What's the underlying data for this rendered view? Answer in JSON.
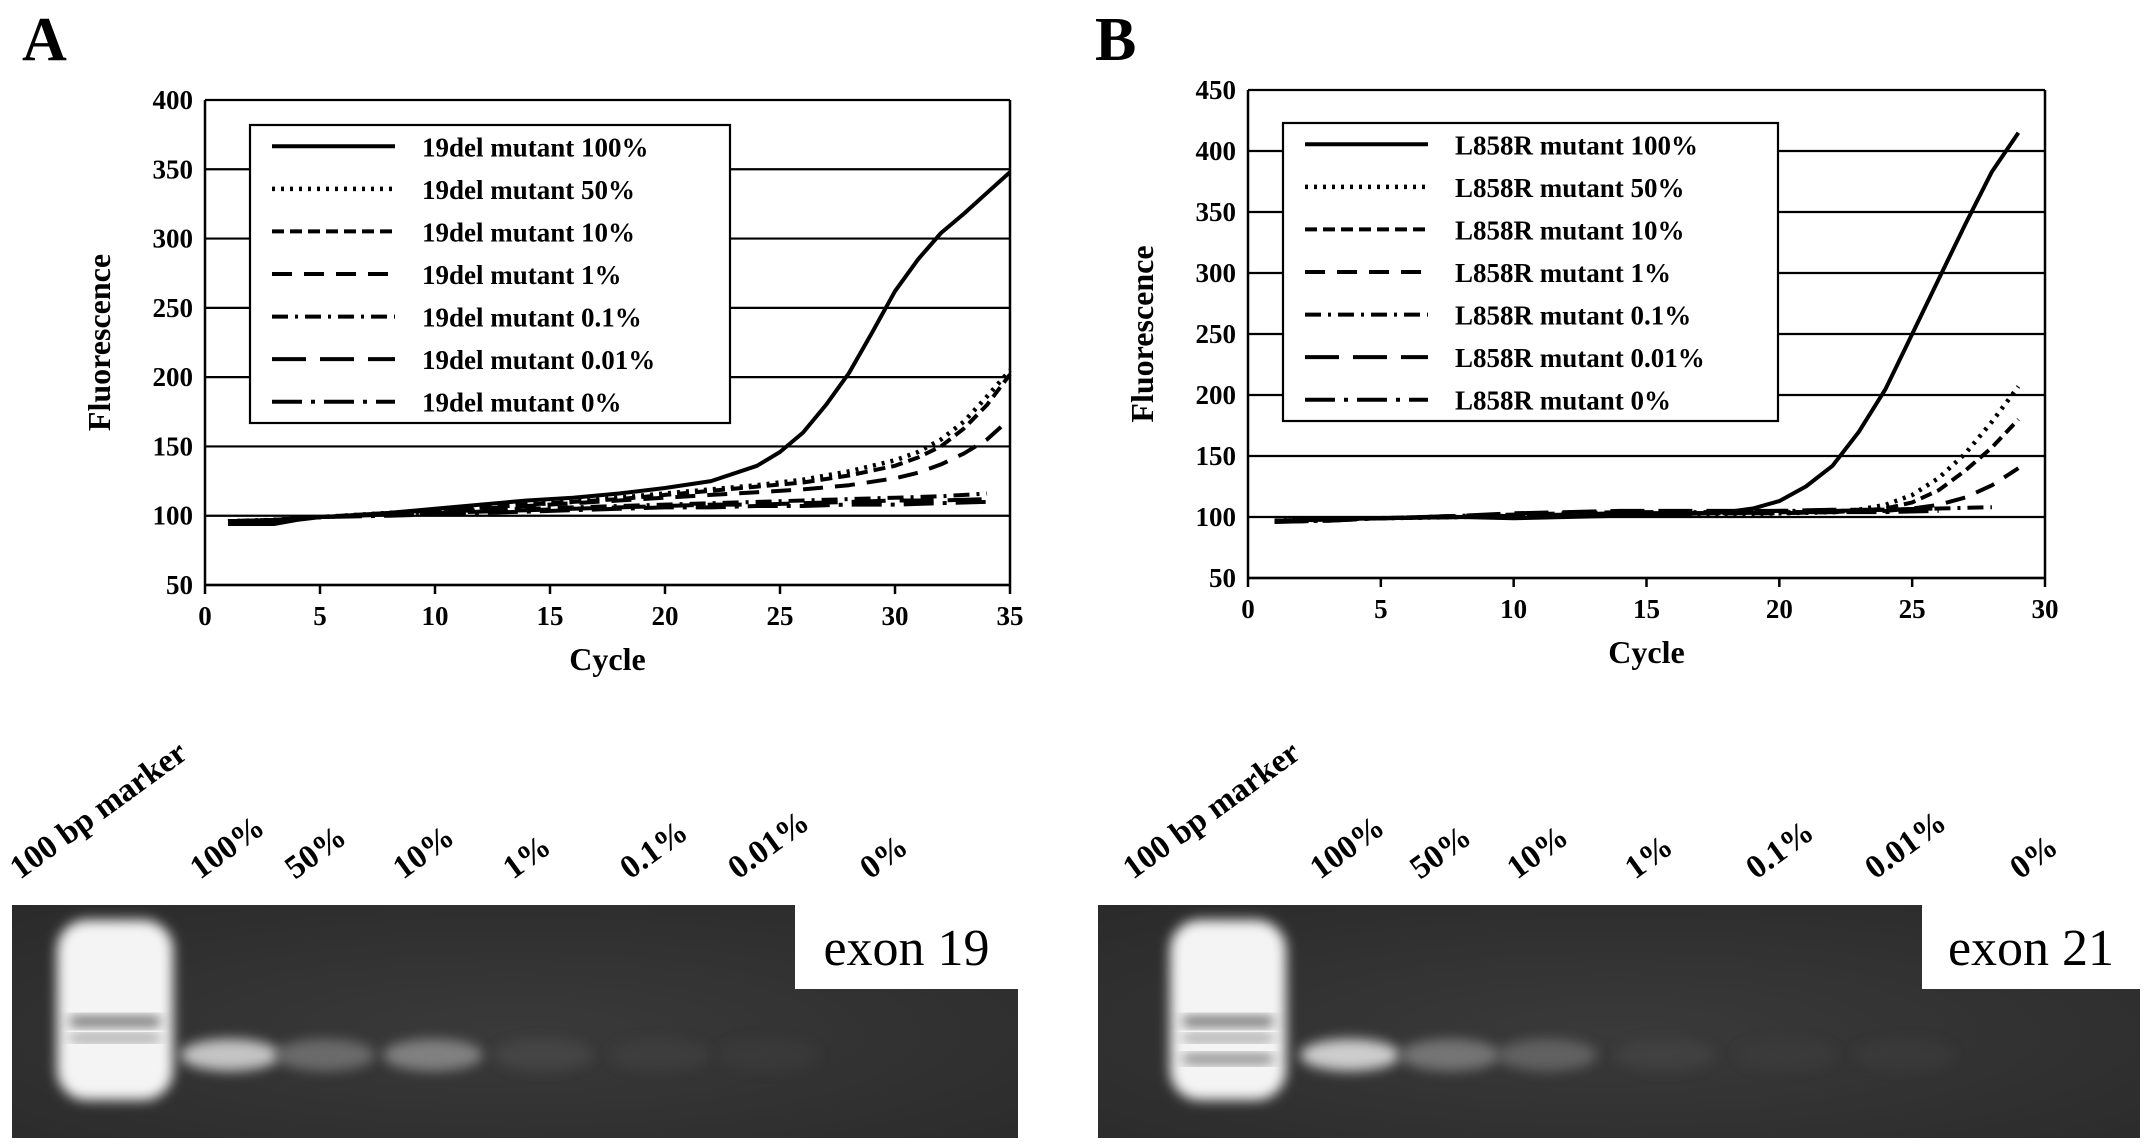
{
  "panels": {
    "A": {
      "letter": "A"
    },
    "B": {
      "letter": "B"
    }
  },
  "chart_data": [
    {
      "type": "line",
      "panel": "A",
      "xlabel": "Cycle",
      "ylabel": "Fluorescence",
      "xlim": [
        0,
        35
      ],
      "ylim": [
        50,
        400
      ],
      "xticks": [
        "0",
        "5",
        "10",
        "15",
        "20",
        "25",
        "30",
        "35"
      ],
      "yticks": [
        "50",
        "100",
        "150",
        "200",
        "250",
        "300",
        "350",
        "400"
      ],
      "grid": "horizontal",
      "legend_position": "top-left",
      "series": [
        {
          "name": "19del mutant 100%",
          "dash": "solid",
          "x": [
            1,
            2,
            3,
            4,
            5,
            6,
            8,
            10,
            12,
            14,
            16,
            18,
            20,
            22,
            24,
            25,
            26,
            27,
            28,
            29,
            30,
            31,
            32,
            33,
            34,
            35
          ],
          "y": [
            94,
            94,
            94,
            97,
            99,
            100,
            102,
            105,
            108,
            111,
            113,
            116,
            120,
            125,
            136,
            146,
            160,
            180,
            203,
            232,
            262,
            285,
            304,
            318,
            333,
            348
          ]
        },
        {
          "name": "19del mutant 50%",
          "dash": "dotted",
          "x": [
            1,
            3,
            5,
            8,
            10,
            12,
            14,
            16,
            18,
            20,
            22,
            24,
            26,
            28,
            30,
            31,
            32,
            33,
            34,
            35
          ],
          "y": [
            96,
            97,
            99,
            102,
            104,
            106,
            108,
            110,
            113,
            116,
            119,
            122,
            126,
            132,
            140,
            146,
            155,
            168,
            186,
            205
          ]
        },
        {
          "name": "19del mutant 10%",
          "dash": "short-dash",
          "x": [
            1,
            3,
            5,
            8,
            10,
            12,
            14,
            16,
            18,
            20,
            22,
            24,
            26,
            28,
            30,
            31,
            32,
            33,
            34,
            35
          ],
          "y": [
            96,
            97,
            99,
            102,
            104,
            106,
            108,
            110,
            112,
            115,
            118,
            121,
            124,
            129,
            136,
            142,
            150,
            163,
            180,
            202
          ]
        },
        {
          "name": "19del mutant 1%",
          "dash": "dash",
          "x": [
            1,
            3,
            5,
            8,
            10,
            12,
            14,
            16,
            18,
            20,
            22,
            24,
            26,
            28,
            30,
            31,
            32,
            33,
            34,
            35
          ],
          "y": [
            96,
            97,
            99,
            101,
            103,
            105,
            107,
            109,
            111,
            113,
            115,
            117,
            119,
            122,
            127,
            131,
            137,
            145,
            155,
            170
          ]
        },
        {
          "name": "19del mutant 0.1%",
          "dash": "dash-dot",
          "x": [
            1,
            3,
            5,
            8,
            10,
            12,
            14,
            16,
            18,
            20,
            22,
            24,
            26,
            28,
            30,
            32,
            34
          ],
          "y": [
            96,
            97,
            99,
            101,
            103,
            104,
            105,
            106,
            107,
            108,
            109,
            110,
            111,
            112,
            113,
            114,
            116
          ]
        },
        {
          "name": "19del mutant 0.01%",
          "dash": "long-dash",
          "x": [
            1,
            3,
            5,
            8,
            10,
            12,
            14,
            16,
            18,
            20,
            22,
            24,
            26,
            28,
            30,
            32,
            34
          ],
          "y": [
            96,
            97,
            99,
            101,
            102,
            103,
            104,
            105,
            106,
            107,
            108,
            108,
            109,
            110,
            111,
            111,
            112
          ]
        },
        {
          "name": "19del mutant 0%",
          "dash": "long-dash-dot",
          "x": [
            1,
            3,
            5,
            8,
            10,
            12,
            14,
            16,
            18,
            20,
            22,
            24,
            26,
            28,
            30,
            32,
            34
          ],
          "y": [
            96,
            97,
            99,
            100,
            101,
            102,
            103,
            104,
            105,
            106,
            106,
            107,
            107,
            108,
            108,
            109,
            110
          ]
        }
      ]
    },
    {
      "type": "line",
      "panel": "B",
      "xlabel": "Cycle",
      "ylabel": "Fluorescence",
      "xlim": [
        0,
        30
      ],
      "ylim": [
        50,
        450
      ],
      "xticks": [
        "0",
        "5",
        "10",
        "15",
        "20",
        "25",
        "30"
      ],
      "yticks": [
        "50",
        "100",
        "150",
        "200",
        "250",
        "300",
        "350",
        "400",
        "450"
      ],
      "grid": "horizontal",
      "legend_position": "top-left",
      "series": [
        {
          "name": "L858R mutant 100%",
          "dash": "solid",
          "x": [
            1,
            3,
            5,
            8,
            10,
            12,
            14,
            16,
            18,
            19,
            20,
            21,
            22,
            23,
            24,
            25,
            26,
            27,
            28,
            29
          ],
          "y": [
            97,
            98,
            99,
            100,
            99,
            100,
            101,
            102,
            104,
            107,
            113,
            125,
            142,
            170,
            205,
            250,
            295,
            340,
            383,
            415
          ]
        },
        {
          "name": "L858R mutant 50%",
          "dash": "dotted",
          "x": [
            1,
            3,
            5,
            8,
            10,
            12,
            14,
            16,
            18,
            20,
            22,
            23,
            24,
            25,
            26,
            27,
            28,
            29
          ],
          "y": [
            97,
            98,
            99,
            100,
            101,
            101,
            102,
            102,
            102,
            103,
            104,
            106,
            110,
            118,
            132,
            152,
            178,
            207
          ]
        },
        {
          "name": "L858R mutant 10%",
          "dash": "short-dash",
          "x": [
            1,
            3,
            5,
            8,
            10,
            12,
            14,
            16,
            18,
            20,
            22,
            23,
            24,
            25,
            26,
            27,
            28,
            29
          ],
          "y": [
            97,
            98,
            99,
            100,
            101,
            102,
            103,
            103,
            103,
            104,
            104,
            105,
            107,
            112,
            122,
            138,
            157,
            180
          ]
        },
        {
          "name": "L858R mutant 1%",
          "dash": "dash",
          "x": [
            1,
            3,
            5,
            8,
            10,
            12,
            14,
            16,
            18,
            20,
            22,
            24,
            25,
            26,
            27,
            28,
            29
          ],
          "y": [
            97,
            98,
            99,
            100,
            101,
            102,
            102,
            103,
            103,
            103,
            104,
            105,
            107,
            110,
            116,
            126,
            140
          ]
        },
        {
          "name": "L858R mutant 0.1%",
          "dash": "dash-dot",
          "x": [
            1,
            3,
            5,
            8,
            10,
            12,
            14,
            16,
            18,
            20,
            22,
            24,
            26,
            28
          ],
          "y": [
            97,
            98,
            99,
            101,
            102,
            103,
            104,
            104,
            104,
            105,
            105,
            106,
            107,
            108
          ]
        },
        {
          "name": "L858R mutant 0.01%",
          "dash": "long-dash",
          "x": [
            1,
            3,
            5,
            8,
            10,
            12,
            14,
            16,
            18,
            20,
            22,
            24,
            26
          ],
          "y": [
            96,
            97,
            99,
            101,
            103,
            104,
            105,
            105,
            105,
            105,
            106,
            106,
            107
          ]
        },
        {
          "name": "L858R mutant 0%",
          "dash": "long-dash-dot",
          "x": [
            1,
            3,
            5,
            8,
            10,
            12,
            14,
            16,
            18,
            20,
            22,
            24,
            26
          ],
          "y": [
            96,
            97,
            99,
            100,
            101,
            102,
            103,
            103,
            103,
            104,
            104,
            104,
            105
          ]
        }
      ]
    }
  ],
  "gels": [
    {
      "panel": "A",
      "lanes": [
        "100 bp marker",
        "100%",
        "50%",
        "10%",
        "1%",
        "0.1%",
        "0.01%",
        "0%"
      ],
      "label": "exon 19",
      "band_intensity": [
        1.0,
        0.8,
        0.35,
        0.45,
        0.12,
        0.05,
        0.02,
        0.0
      ]
    },
    {
      "panel": "B",
      "lanes": [
        "100 bp marker",
        "100%",
        "50%",
        "10%",
        "1%",
        "0.1%",
        "0.01%",
        "0%"
      ],
      "label": "exon 21",
      "band_intensity": [
        1.0,
        0.85,
        0.4,
        0.3,
        0.08,
        0.03,
        0.02,
        0.0
      ]
    }
  ]
}
